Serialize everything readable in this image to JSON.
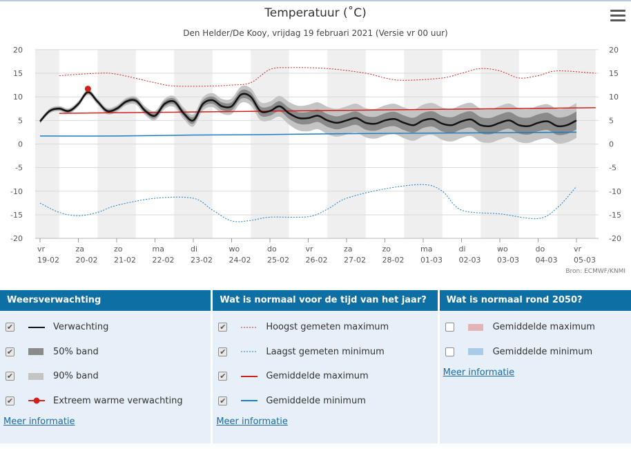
{
  "title": "Temperatuur (˚C)",
  "subtitle": "Den Helder/De Kooy, vrijdag 19 februari 2021 (Versie vr 00 uur)",
  "source": "Bron: ECMWF/KNMI",
  "chart_data": {
    "type": "line",
    "ylim": [
      -20,
      20
    ],
    "yticks": [
      20,
      15,
      10,
      5,
      0,
      -5,
      -10,
      -15,
      -20
    ],
    "x_ticks": [
      {
        "day": "vr",
        "date": "19-02"
      },
      {
        "day": "za",
        "date": "20-02"
      },
      {
        "day": "zo",
        "date": "21-02"
      },
      {
        "day": "ma",
        "date": "22-02"
      },
      {
        "day": "di",
        "date": "23-02"
      },
      {
        "day": "wo",
        "date": "24-02"
      },
      {
        "day": "do",
        "date": "25-02"
      },
      {
        "day": "vr",
        "date": "26-02"
      },
      {
        "day": "za",
        "date": "27-02"
      },
      {
        "day": "zo",
        "date": "28-02"
      },
      {
        "day": "ma",
        "date": "01-03"
      },
      {
        "day": "di",
        "date": "02-03"
      },
      {
        "day": "wo",
        "date": "03-03"
      },
      {
        "day": "do",
        "date": "04-03"
      },
      {
        "day": "vr",
        "date": "05-03"
      }
    ],
    "forecast": [
      [
        0,
        4.8
      ],
      [
        0.25,
        7.0
      ],
      [
        0.5,
        7.5
      ],
      [
        0.75,
        7.0
      ],
      [
        1.0,
        8.5
      ],
      [
        1.25,
        11.0
      ],
      [
        1.5,
        9.0
      ],
      [
        1.75,
        7.0
      ],
      [
        2.0,
        7.5
      ],
      [
        2.25,
        9.0
      ],
      [
        2.5,
        9.2
      ],
      [
        2.75,
        7.0
      ],
      [
        3.0,
        6.0
      ],
      [
        3.25,
        8.5
      ],
      [
        3.5,
        9.0
      ],
      [
        3.75,
        6.5
      ],
      [
        4.0,
        5.0
      ],
      [
        4.25,
        8.5
      ],
      [
        4.5,
        9.3
      ],
      [
        4.75,
        8.0
      ],
      [
        5.0,
        8.0
      ],
      [
        5.25,
        10.5
      ],
      [
        5.5,
        10.0
      ],
      [
        5.75,
        7.0
      ],
      [
        6.0,
        7.0
      ],
      [
        6.25,
        8.0
      ],
      [
        6.5,
        6.5
      ],
      [
        6.75,
        5.5
      ],
      [
        7.0,
        5.5
      ],
      [
        7.25,
        6.0
      ],
      [
        7.5,
        5.0
      ],
      [
        7.75,
        4.5
      ],
      [
        8.0,
        5.0
      ],
      [
        8.25,
        5.5
      ],
      [
        8.5,
        4.5
      ],
      [
        8.75,
        4.3
      ],
      [
        9.0,
        5.0
      ],
      [
        9.25,
        5.3
      ],
      [
        9.5,
        4.5
      ],
      [
        9.75,
        4.0
      ],
      [
        10.0,
        5.0
      ],
      [
        10.25,
        5.3
      ],
      [
        10.5,
        4.3
      ],
      [
        10.75,
        4.0
      ],
      [
        11.0,
        4.8
      ],
      [
        11.25,
        5.2
      ],
      [
        11.5,
        4.0
      ],
      [
        11.75,
        3.8
      ],
      [
        12.0,
        4.5
      ],
      [
        12.25,
        5.0
      ],
      [
        12.5,
        4.0
      ],
      [
        12.75,
        3.8
      ],
      [
        13.0,
        4.5
      ],
      [
        13.25,
        4.8
      ],
      [
        13.5,
        3.8
      ],
      [
        13.75,
        4.0
      ],
      [
        14.0,
        5.0
      ]
    ],
    "band50_half": [
      [
        0,
        0.3
      ],
      [
        2,
        0.4
      ],
      [
        4,
        0.7
      ],
      [
        6,
        1.0
      ],
      [
        7,
        1.3
      ],
      [
        9,
        1.5
      ],
      [
        11,
        1.7
      ],
      [
        13,
        1.8
      ],
      [
        14,
        1.9
      ]
    ],
    "band90_half": [
      [
        0,
        0.5
      ],
      [
        2,
        0.7
      ],
      [
        4,
        1.3
      ],
      [
        6,
        2.0
      ],
      [
        7,
        2.8
      ],
      [
        9,
        3.2
      ],
      [
        11,
        3.5
      ],
      [
        13,
        3.6
      ],
      [
        14,
        3.7
      ]
    ],
    "extreme_warm": [
      {
        "x": 1.25,
        "y": 11.7
      }
    ],
    "record_max": [
      [
        0.5,
        14.5
      ],
      [
        1.5,
        15.0
      ],
      [
        2.0,
        14.8
      ],
      [
        3.0,
        13.0
      ],
      [
        3.5,
        12.3
      ],
      [
        4.5,
        12.3
      ],
      [
        5.0,
        12.5
      ],
      [
        5.5,
        13.0
      ],
      [
        6.0,
        15.8
      ],
      [
        6.5,
        16.2
      ],
      [
        7.5,
        16.0
      ],
      [
        8.5,
        15.0
      ],
      [
        9.0,
        14.0
      ],
      [
        9.5,
        13.5
      ],
      [
        10.5,
        14.0
      ],
      [
        11.0,
        15.0
      ],
      [
        11.5,
        16.0
      ],
      [
        12.0,
        15.5
      ],
      [
        12.5,
        14.0
      ],
      [
        13.0,
        14.5
      ],
      [
        13.5,
        15.5
      ],
      [
        14.5,
        15.0
      ]
    ],
    "record_min": [
      [
        0,
        -12.5
      ],
      [
        0.5,
        -14.5
      ],
      [
        1.0,
        -15.2
      ],
      [
        1.5,
        -14.5
      ],
      [
        2.0,
        -13.0
      ],
      [
        3.0,
        -11.5
      ],
      [
        4.0,
        -11.5
      ],
      [
        4.5,
        -14.0
      ],
      [
        5.0,
        -16.3
      ],
      [
        5.5,
        -16.2
      ],
      [
        6.0,
        -15.5
      ],
      [
        7.0,
        -15.4
      ],
      [
        7.5,
        -13.8
      ],
      [
        8.0,
        -11.5
      ],
      [
        9.0,
        -9.5
      ],
      [
        10.0,
        -8.6
      ],
      [
        10.5,
        -10.0
      ],
      [
        11.0,
        -14.0
      ],
      [
        12.0,
        -14.8
      ],
      [
        13.0,
        -15.8
      ],
      [
        13.5,
        -13.5
      ],
      [
        14.0,
        -9.0
      ]
    ],
    "mean_max": [
      [
        0.5,
        6.5
      ],
      [
        14.5,
        7.7
      ]
    ],
    "mean_min": [
      [
        0,
        1.7
      ],
      [
        2,
        1.7
      ],
      [
        4,
        1.9
      ],
      [
        6,
        2.0
      ],
      [
        8,
        2.2
      ],
      [
        10,
        2.3
      ],
      [
        12,
        2.4
      ],
      [
        14,
        2.5
      ]
    ]
  },
  "legend": {
    "panels": [
      {
        "title": "Weersverwachting",
        "items": [
          {
            "label": "Verwachting",
            "checked": true,
            "symbol": "solid-line",
            "color": "#111111"
          },
          {
            "label": "50% band",
            "checked": true,
            "symbol": "box",
            "color": "#8a8a8a"
          },
          {
            "label": "90% band",
            "checked": true,
            "symbol": "box",
            "color": "#c4c4c4"
          },
          {
            "label": "Extreem warme verwachting",
            "checked": true,
            "symbol": "dot-line",
            "color": "#d0201b"
          }
        ],
        "link": "Meer informatie"
      },
      {
        "title": "Wat is normaal voor de tijd van het jaar?",
        "items": [
          {
            "label": "Hoogst gemeten maximum",
            "checked": true,
            "symbol": "dotted-line",
            "color": "#d0201b"
          },
          {
            "label": "Laagst gemeten minimum",
            "checked": true,
            "symbol": "dotted-line",
            "color": "#1a7cc2"
          },
          {
            "label": "Gemiddelde maximum",
            "checked": true,
            "symbol": "solid-line",
            "color": "#d0201b"
          },
          {
            "label": "Gemiddelde minimum",
            "checked": true,
            "symbol": "solid-line",
            "color": "#1a7cc2"
          }
        ],
        "link": "Meer informatie"
      },
      {
        "title": "Wat is normaal rond 2050?",
        "items": [
          {
            "label": "Gemiddelde maximum",
            "checked": false,
            "symbol": "box",
            "color": "#e3b3b5"
          },
          {
            "label": "Gemiddelde minimum",
            "checked": false,
            "symbol": "box",
            "color": "#a8cbe8"
          }
        ],
        "link": "Meer informatie"
      }
    ]
  }
}
